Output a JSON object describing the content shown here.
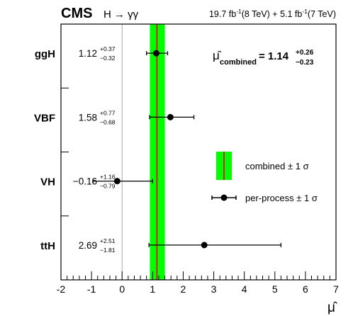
{
  "chart_data": {
    "type": "scatter",
    "header": {
      "experiment": "CMS",
      "process": "H → γγ",
      "lumi_8": "19.7 fb",
      "lumi_8_exp": "-1",
      "energy_8": "(8 TeV) + 5.1 fb",
      "lumi_7_exp": "-1",
      "energy_7": "(7 TeV)"
    },
    "xlabel": "μ̂",
    "xlim": [
      -2,
      7
    ],
    "x_ticks": [
      -2,
      -1,
      0,
      1,
      2,
      3,
      4,
      5,
      6,
      7
    ],
    "categories": [
      "ggH",
      "VBF",
      "VH",
      "ttH"
    ],
    "points": [
      {
        "label": "ggH",
        "mu": 1.12,
        "err_up": 0.37,
        "err_down": 0.32,
        "value_text": "1.12",
        "up_text": "+0.37",
        "down_text": "−0.32"
      },
      {
        "label": "VBF",
        "mu": 1.58,
        "err_up": 0.77,
        "err_down": 0.68,
        "value_text": "1.58",
        "up_text": "+0.77",
        "down_text": "−0.68"
      },
      {
        "label": "VH",
        "mu": -0.16,
        "err_up": 1.16,
        "err_down": 0.79,
        "value_text": "−0.16",
        "up_text": "+1.16",
        "down_text": "−0.79"
      },
      {
        "label": "ttH",
        "mu": 2.69,
        "err_up": 2.51,
        "err_down": 1.81,
        "value_text": "2.69",
        "up_text": "+2.51",
        "down_text": "−1.81"
      }
    ],
    "combined": {
      "mu": 1.14,
      "err_up": 0.26,
      "err_down": 0.23,
      "label_mu": "μ̂",
      "label_sub": "combined",
      "label_eq": "= 1.14",
      "label_up": "+0.26",
      "label_down": "−0.23"
    },
    "legend": {
      "placement": "right",
      "combined_label": "combined ± 1 σ",
      "per_process_label": "per-process ± 1 σ"
    },
    "colors": {
      "band": "#00ff00",
      "central_line": "#cc2222",
      "marker": "#000000",
      "zero_line": "#aaaaaa"
    }
  }
}
